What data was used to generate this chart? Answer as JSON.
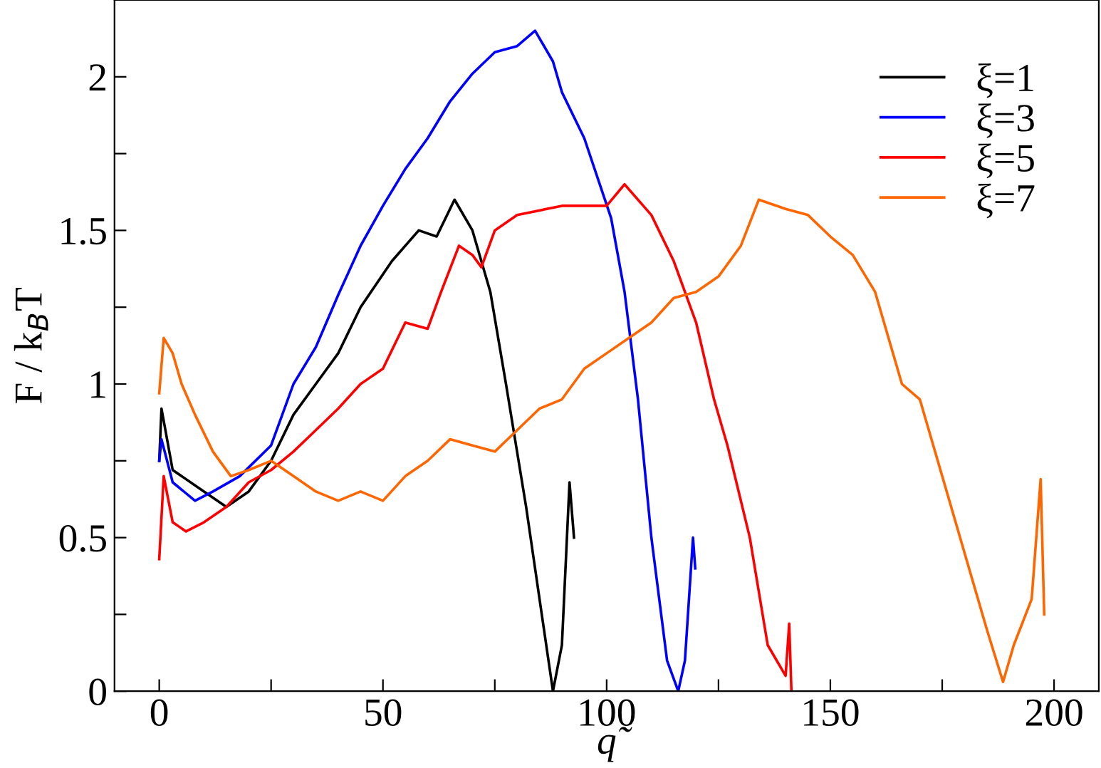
{
  "chart_data": {
    "type": "line",
    "xlabel": "q̃",
    "ylabel": "F / k$_{B}$T",
    "xlim": [
      -10,
      210
    ],
    "ylim": [
      0,
      2.25
    ],
    "xticks": [
      0,
      {
        "value": 25,
        "label": null
      },
      50,
      {
        "value": 75,
        "label": null
      },
      100,
      {
        "value": 125,
        "label": null
      },
      150,
      {
        "value": 175,
        "label": null
      },
      200
    ],
    "yticks": [
      0,
      {
        "value": 0.25,
        "label": null
      },
      0.5,
      {
        "value": 0.75,
        "label": null
      },
      1,
      {
        "value": 1.25,
        "label": null
      },
      1.5,
      {
        "value": 1.75,
        "label": null
      },
      2
    ],
    "grid": false,
    "legend": "top right",
    "marker": "none",
    "line_style": "solid",
    "series": [
      {
        "name": "ξ=1",
        "color": "#000000",
        "x": [
          0,
          0.5,
          3,
          10,
          15,
          20,
          25,
          30,
          35,
          40,
          45,
          52,
          58,
          62,
          66,
          70,
          74,
          77.5,
          82,
          86,
          88,
          90,
          91.7,
          92.7
        ],
        "values": [
          0.75,
          0.92,
          0.72,
          0.65,
          0.6,
          0.65,
          0.75,
          0.9,
          1.0,
          1.1,
          1.25,
          1.4,
          1.5,
          1.48,
          1.6,
          1.5,
          1.3,
          1.0,
          0.6,
          0.2,
          0.0,
          0.15,
          0.68,
          0.5
        ]
      },
      {
        "name": "ξ=3",
        "color": "#0000ff",
        "x": [
          0,
          0.5,
          3,
          8,
          12,
          18,
          25,
          30,
          35,
          40,
          45,
          50,
          55,
          60,
          65,
          70,
          75,
          80,
          84,
          88,
          90,
          95,
          101,
          104,
          107,
          110,
          113.5,
          116,
          117.5,
          119.3,
          119.8
        ],
        "values": [
          0.75,
          0.82,
          0.68,
          0.62,
          0.65,
          0.7,
          0.8,
          1.0,
          1.12,
          1.29,
          1.45,
          1.58,
          1.7,
          1.8,
          1.92,
          2.01,
          2.08,
          2.1,
          2.15,
          2.05,
          1.95,
          1.8,
          1.54,
          1.3,
          0.95,
          0.5,
          0.1,
          0.0,
          0.1,
          0.5,
          0.4
        ]
      },
      {
        "name": "ξ=5",
        "color": "#ff0000",
        "x": [
          0,
          1,
          3,
          6,
          10,
          15,
          20,
          25,
          30,
          35,
          40,
          45,
          50,
          55,
          60,
          63,
          67,
          70,
          72,
          75,
          80,
          90,
          100,
          104,
          110,
          115,
          120,
          124,
          127,
          132,
          136,
          140,
          140.8,
          141.3
        ],
        "values": [
          0.43,
          0.7,
          0.55,
          0.52,
          0.55,
          0.6,
          0.68,
          0.72,
          0.78,
          0.85,
          0.92,
          1.0,
          1.05,
          1.2,
          1.18,
          1.3,
          1.45,
          1.42,
          1.38,
          1.5,
          1.55,
          1.58,
          1.58,
          1.65,
          1.55,
          1.4,
          1.2,
          0.95,
          0.8,
          0.5,
          0.15,
          0.05,
          0.22,
          0.0
        ]
      },
      {
        "name": "ξ=7",
        "color": "#ff6600",
        "x": [
          0,
          1,
          3,
          5,
          8,
          12,
          16,
          20,
          25,
          30,
          35,
          40,
          45,
          50,
          55,
          60,
          65,
          70,
          75,
          80,
          85,
          90,
          95,
          100,
          105,
          110,
          115,
          120,
          125,
          130,
          134,
          140,
          145,
          150,
          155,
          160,
          166,
          170,
          175,
          180,
          185,
          188.6,
          191,
          195,
          197,
          197.8
        ],
        "values": [
          0.97,
          1.15,
          1.1,
          1.0,
          0.9,
          0.78,
          0.7,
          0.72,
          0.75,
          0.7,
          0.65,
          0.62,
          0.65,
          0.62,
          0.7,
          0.75,
          0.82,
          0.8,
          0.78,
          0.85,
          0.92,
          0.95,
          1.05,
          1.1,
          1.15,
          1.2,
          1.28,
          1.3,
          1.35,
          1.45,
          1.6,
          1.57,
          1.55,
          1.48,
          1.42,
          1.3,
          1.0,
          0.95,
          0.7,
          0.45,
          0.2,
          0.03,
          0.15,
          0.3,
          0.69,
          0.25
        ]
      }
    ]
  }
}
